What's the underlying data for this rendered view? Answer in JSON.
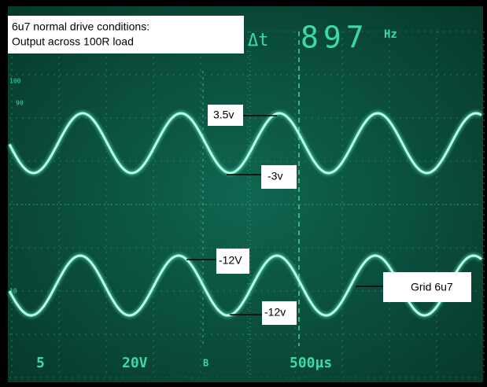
{
  "caption": {
    "line1": "6u7 normal drive conditions:",
    "line2": "Output across 100R load"
  },
  "readout": {
    "delta": "Δt",
    "frequency": "897",
    "unit": "Hz"
  },
  "graticule_labels": {
    "top": "100",
    "upper": "90",
    "lower": "10"
  },
  "annotations": {
    "peak_top": "3.5v",
    "trough_top": "-3v",
    "peak_bottom": "-12V",
    "trough_bottom": "-12v",
    "grid": "Grid 6u7"
  },
  "settings": {
    "ch1": "5",
    "ch2": "20V",
    "trigger": "B",
    "timebase": "500µs"
  }
}
